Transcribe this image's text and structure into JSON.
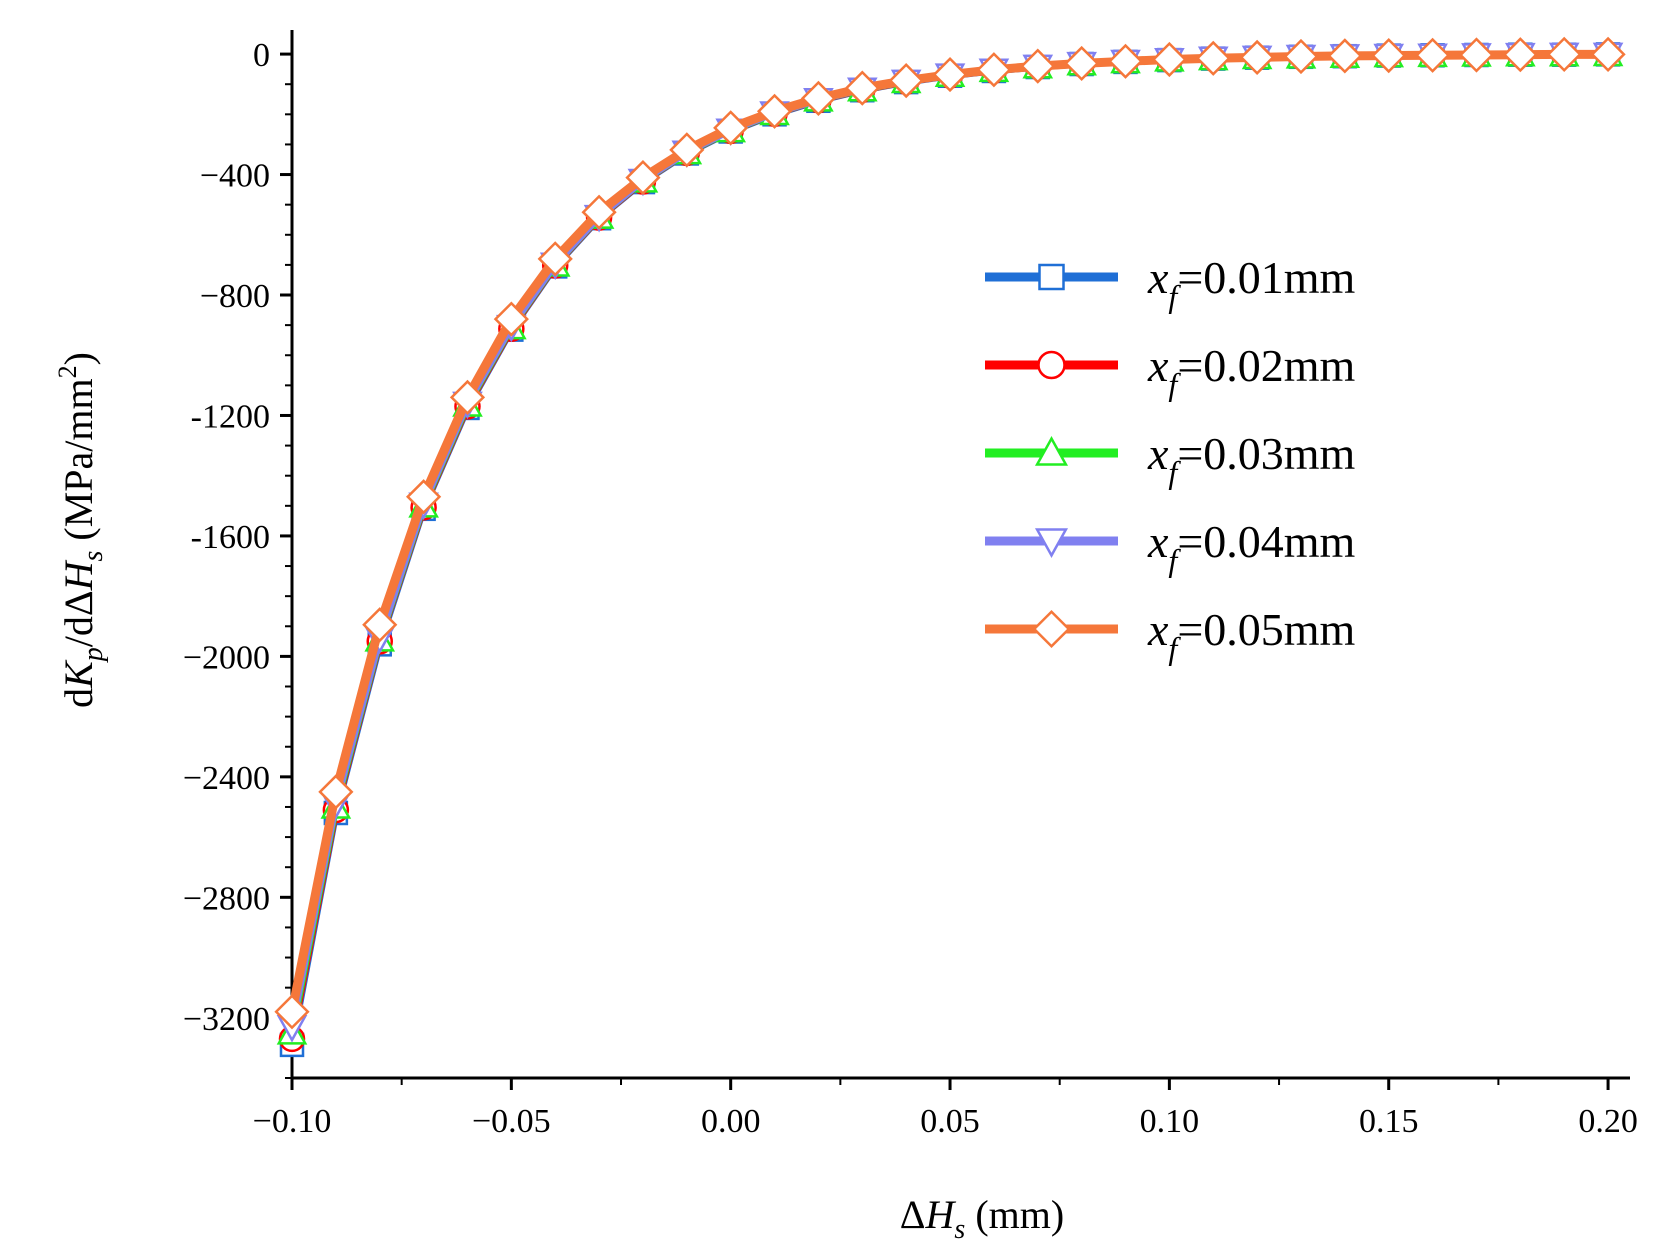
{
  "chart_data": {
    "type": "line",
    "title": "",
    "xlabel": "ΔH_s (mm)",
    "ylabel": "dK_p/dΔH_s (MPa/mm²)",
    "xlabel_parts": {
      "delta": "Δ",
      "var": "H",
      "sub": "s",
      "unit": " (mm)"
    },
    "ylabel_parts": {
      "d1": "d",
      "var1": "K",
      "sub1": "p",
      "slash": "/dΔ",
      "var2": "H",
      "sub2": "s",
      "unit_pre": " (MPa/mm",
      "unit_sup": "2",
      "unit_post": ")"
    },
    "xlim": [
      -0.1,
      0.205
    ],
    "ylim": [
      -3400,
      80
    ],
    "x_ticks": [
      -0.1,
      -0.05,
      0.0,
      0.05,
      0.1,
      0.15,
      0.2
    ],
    "x_tick_labels": [
      "−0.10",
      "−0.05",
      "0.00",
      "0.05",
      "0.10",
      "0.15",
      "0.20"
    ],
    "y_ticks": [
      0,
      -400,
      -800,
      -1200,
      -1600,
      -2000,
      -2400,
      -2800,
      -3200
    ],
    "y_tick_labels": [
      "0",
      "−400",
      "−800",
      "-1200",
      "-1600",
      "−2000",
      "−2400",
      "−2800",
      "−3200"
    ],
    "legend_position": "center-right",
    "x": [
      -0.1,
      -0.09,
      -0.08,
      -0.07,
      -0.06,
      -0.05,
      -0.04,
      -0.03,
      -0.02,
      -0.01,
      0.0,
      0.01,
      0.02,
      0.03,
      0.04,
      0.05,
      0.06,
      0.07,
      0.08,
      0.09,
      0.1,
      0.11,
      0.12,
      0.13,
      0.14,
      0.15,
      0.16,
      0.17,
      0.18,
      0.19,
      0.2
    ],
    "series": [
      {
        "name": "x_f=0.01mm",
        "legend_var": "x",
        "legend_sub": "f",
        "legend_text": "=0.01mm",
        "color": "#1f6fd6",
        "marker": "square",
        "values": [
          -3290,
          -2520,
          -1960,
          -1510,
          -1175,
          -915,
          -705,
          -545,
          -425,
          -330,
          -257,
          -200,
          -155,
          -120,
          -93,
          -72,
          -56,
          -43,
          -33,
          -26,
          -20,
          -15,
          -12,
          -9,
          -7,
          -5,
          -4,
          -3,
          -2,
          -2,
          -1
        ]
      },
      {
        "name": "x_f=0.02mm",
        "legend_var": "x",
        "legend_sub": "f",
        "legend_text": "=0.02mm",
        "color": "#ff0000",
        "marker": "circle",
        "values": [
          -3270,
          -2510,
          -1950,
          -1505,
          -1170,
          -912,
          -702,
          -543,
          -423,
          -328,
          -255,
          -198,
          -153,
          -119,
          -92,
          -71,
          -55,
          -42,
          -33,
          -25,
          -19,
          -15,
          -11,
          -9,
          -7,
          -5,
          -4,
          -3,
          -2,
          -2,
          -1
        ]
      },
      {
        "name": "x_f=0.03mm",
        "legend_var": "x",
        "legend_sub": "f",
        "legend_text": "=0.03mm",
        "color": "#22ee22",
        "marker": "triangle-up",
        "values": [
          -3250,
          -2500,
          -1945,
          -1500,
          -1165,
          -908,
          -700,
          -541,
          -421,
          -327,
          -254,
          -197,
          -152,
          -118,
          -91,
          -70,
          -54,
          -42,
          -32,
          -25,
          -19,
          -15,
          -11,
          -9,
          -7,
          -5,
          -4,
          -3,
          -2,
          -2,
          -1
        ]
      },
      {
        "name": "x_f=0.04mm",
        "legend_var": "x",
        "legend_sub": "f",
        "legend_text": "=0.04mm",
        "color": "#8080f0",
        "marker": "triangle-down",
        "values": [
          -3230,
          -2490,
          -1940,
          -1495,
          -1160,
          -905,
          -698,
          -540,
          -420,
          -326,
          -253,
          -196,
          -152,
          -117,
          -91,
          -70,
          -54,
          -41,
          -32,
          -25,
          -19,
          -14,
          -11,
          -8,
          -6,
          -5,
          -4,
          -3,
          -2,
          -1,
          -1
        ]
      },
      {
        "name": "x_f=0.05mm",
        "legend_var": "x",
        "legend_sub": "f",
        "legend_text": "=0.05mm",
        "color": "#f5773a",
        "marker": "diamond",
        "values": [
          -3180,
          -2450,
          -1895,
          -1470,
          -1140,
          -880,
          -680,
          -525,
          -410,
          -318,
          -245,
          -190,
          -147,
          -113,
          -88,
          -68,
          -52,
          -40,
          -31,
          -24,
          -18,
          -14,
          -11,
          -8,
          -6,
          -5,
          -4,
          -3,
          -2,
          -1,
          -1
        ]
      }
    ]
  }
}
